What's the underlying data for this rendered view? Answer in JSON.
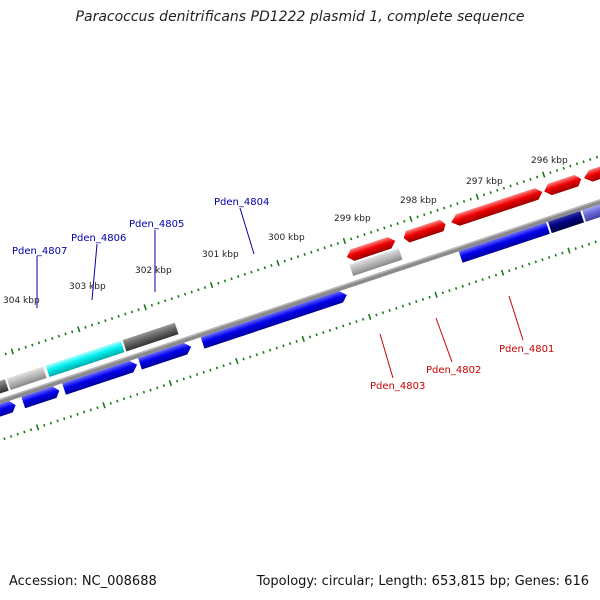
{
  "title": "Paracoccus denitrificans PD1222 plasmid 1, complete sequence",
  "accession_text": "Accession: NC_008688",
  "summary_text": "Topology: circular; Length: 653,815 bp; Genes: 616",
  "scale_labels": [
    "296 kbp",
    "297 kbp",
    "298 kbp",
    "299 kbp",
    "300 kbp",
    "301 kbp",
    "302 kbp",
    "303 kbp",
    "304 kbp"
  ],
  "gene_labels": [
    {
      "name": "Pden_4801",
      "color": "#cc0000"
    },
    {
      "name": "Pden_4802",
      "color": "#cc0000"
    },
    {
      "name": "Pden_4803",
      "color": "#cc0000"
    },
    {
      "name": "Pden_4804",
      "color": "#0000aa"
    },
    {
      "name": "Pden_4805",
      "color": "#0000aa"
    },
    {
      "name": "Pden_4806",
      "color": "#0000aa"
    },
    {
      "name": "Pden_4807",
      "color": "#0000aa"
    }
  ],
  "colors": {
    "forward_strand": "#ee0000",
    "reverse_strand": "#0000dd",
    "highlight": "#00e6e6",
    "backbone": "#808080",
    "ticks": "#1a7a1a"
  }
}
